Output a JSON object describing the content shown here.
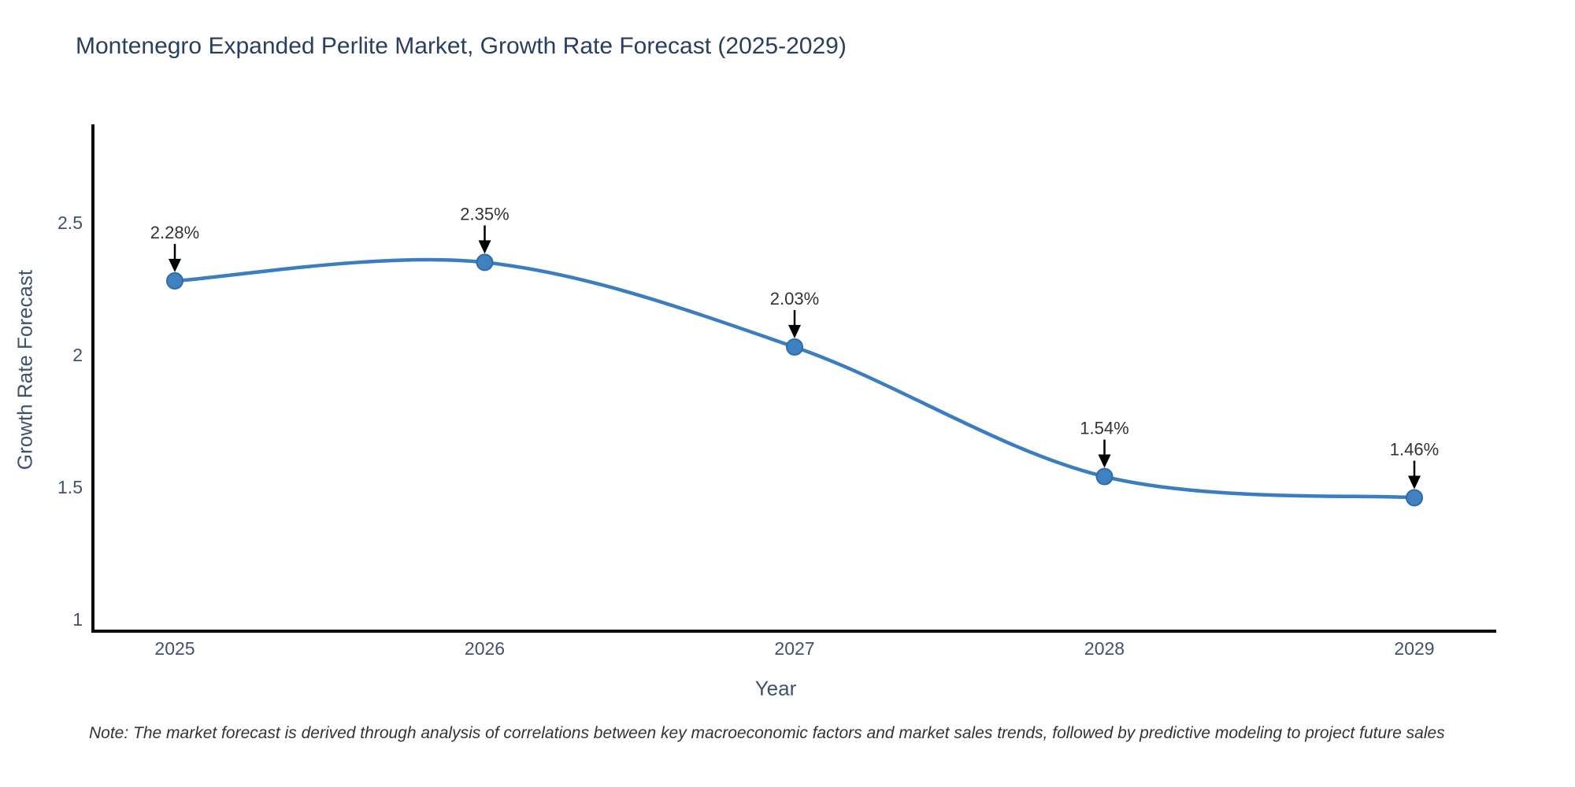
{
  "title": "Montenegro Expanded Perlite Market, Growth Rate Forecast (2025-2029)",
  "note": "Note: The market forecast is derived through analysis of correlations between key macroeconomic factors and market sales trends, followed by predictive modeling to project future sales",
  "chart_data": {
    "type": "line",
    "title": "Montenegro Expanded Perlite Market, Growth Rate Forecast (2025-2029)",
    "xlabel": "Year",
    "ylabel": "Growth Rate Forecast",
    "categories": [
      2025,
      2026,
      2027,
      2028,
      2029
    ],
    "series": [
      {
        "name": "Growth Rate Forecast",
        "values": [
          2.28,
          2.35,
          2.03,
          1.54,
          1.46
        ],
        "point_labels": [
          "2.28%",
          "2.35%",
          "2.03%",
          "1.54%",
          "1.46%"
        ]
      }
    ],
    "yticks": [
      1,
      1.5,
      2,
      2.5
    ],
    "ylim": [
      0.95,
      2.87
    ],
    "line_shape": "spline",
    "markers": true,
    "grid": false,
    "legend": "none",
    "annotations_style": "value label with black arrow pointing down at each point",
    "colors": {
      "line": "#3a7ebf",
      "marker_fill": "#3f81c1",
      "marker_edge": "#2d6ca8",
      "axis_line": "#0d0d0d",
      "title_text": "#2a3f5f",
      "tick_text": "#42516e",
      "annotation_text": "#333333",
      "arrow": "#000000"
    }
  }
}
